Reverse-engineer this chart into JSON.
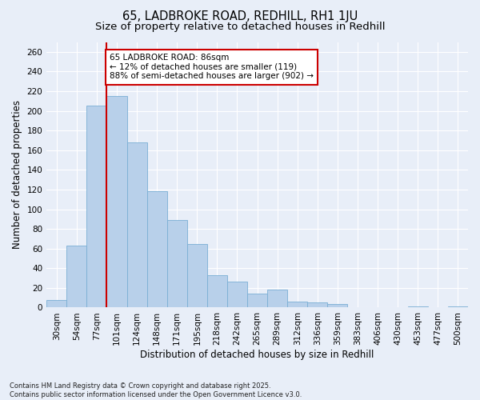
{
  "title_line1": "65, LADBROKE ROAD, REDHILL, RH1 1JU",
  "title_line2": "Size of property relative to detached houses in Redhill",
  "xlabel": "Distribution of detached houses by size in Redhill",
  "ylabel": "Number of detached properties",
  "categories": [
    "30sqm",
    "54sqm",
    "77sqm",
    "101sqm",
    "124sqm",
    "148sqm",
    "171sqm",
    "195sqm",
    "218sqm",
    "242sqm",
    "265sqm",
    "289sqm",
    "312sqm",
    "336sqm",
    "359sqm",
    "383sqm",
    "406sqm",
    "430sqm",
    "453sqm",
    "477sqm",
    "500sqm"
  ],
  "values": [
    8,
    63,
    205,
    215,
    168,
    118,
    89,
    65,
    33,
    26,
    14,
    18,
    6,
    5,
    4,
    0,
    0,
    0,
    1,
    0,
    1
  ],
  "bar_color": "#b8d0ea",
  "bar_edge_color": "#7aafd4",
  "property_line_x": 2.5,
  "annotation_text": "65 LADBROKE ROAD: 86sqm\n← 12% of detached houses are smaller (119)\n88% of semi-detached houses are larger (902) →",
  "annotation_box_color": "#ffffff",
  "annotation_box_edgecolor": "#cc0000",
  "vline_color": "#cc0000",
  "ylim": [
    0,
    270
  ],
  "yticks": [
    0,
    20,
    40,
    60,
    80,
    100,
    120,
    140,
    160,
    180,
    200,
    220,
    240,
    260
  ],
  "footer_line1": "Contains HM Land Registry data © Crown copyright and database right 2025.",
  "footer_line2": "Contains public sector information licensed under the Open Government Licence v3.0.",
  "background_color": "#e8eef8",
  "grid_color": "#ffffff",
  "title_fontsize": 10.5,
  "subtitle_fontsize": 9.5,
  "axis_label_fontsize": 8.5,
  "tick_fontsize": 7.5,
  "annotation_fontsize": 7.5,
  "footer_fontsize": 6.0
}
